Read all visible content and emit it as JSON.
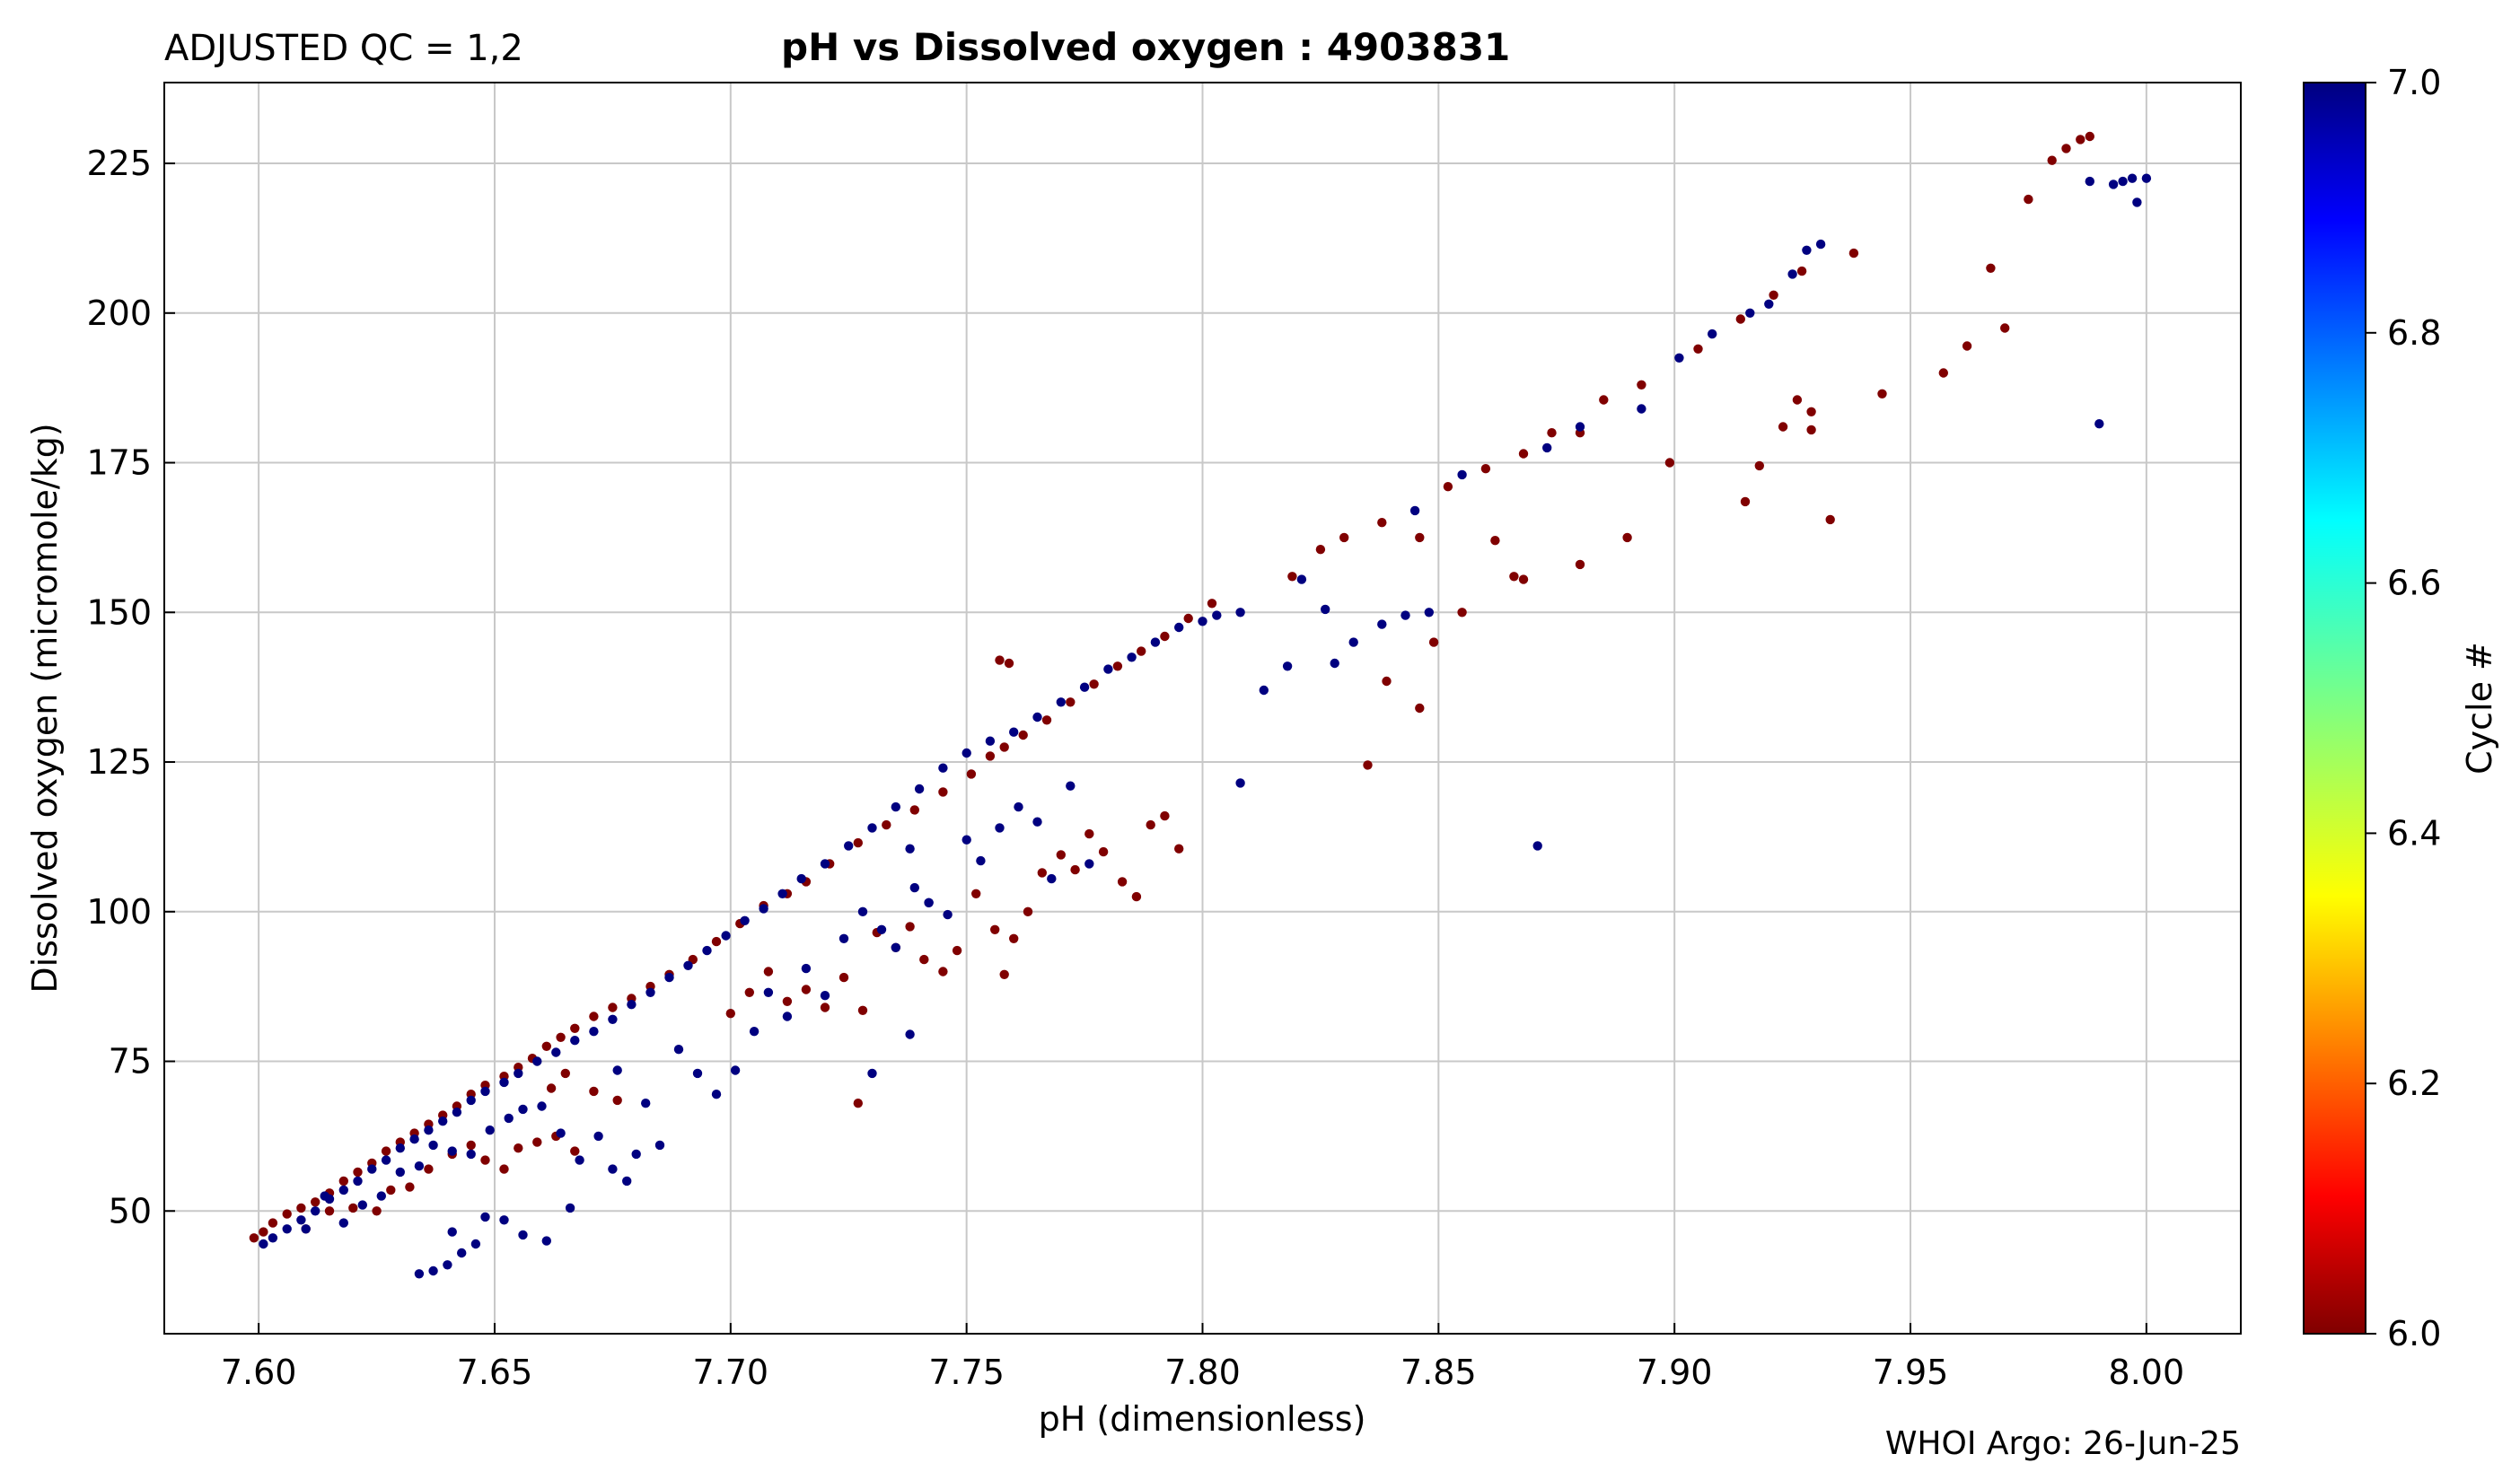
{
  "chart_data": {
    "type": "scatter",
    "title_left": "ADJUSTED QC = 1,2",
    "title": "pH vs Dissolved oxygen : 4903831",
    "xlabel": "pH  (dimensionless)",
    "ylabel": "Dissolved oxygen  (micromole/kg)",
    "credit": "WHOI Argo: 26-Jun-25",
    "xlim": [
      7.58,
      8.02
    ],
    "ylim": [
      29.5,
      238.5
    ],
    "xticks": [
      "7.60",
      "7.65",
      "7.70",
      "7.75",
      "7.80",
      "7.85",
      "7.90",
      "7.95",
      "8.00"
    ],
    "yticks": [
      "50",
      "75",
      "100",
      "125",
      "150",
      "175",
      "200",
      "225"
    ],
    "grid": true,
    "colorbar": {
      "label": "Cycle #",
      "range": [
        6.0,
        7.0
      ],
      "ticks": [
        "6.0",
        "6.2",
        "6.4",
        "6.6",
        "6.8",
        "7.0"
      ],
      "colormap": "jet"
    },
    "colors": {
      "cycle_6": "#800000",
      "cycle_7": "#000080"
    },
    "series": [
      {
        "cycle": 6,
        "points": [
          [
            7.599,
            45.5
          ],
          [
            7.601,
            46.5
          ],
          [
            7.603,
            48.0
          ],
          [
            7.606,
            49.5
          ],
          [
            7.609,
            50.5
          ],
          [
            7.612,
            51.5
          ],
          [
            7.615,
            53.0
          ],
          [
            7.618,
            55.0
          ],
          [
            7.621,
            56.5
          ],
          [
            7.624,
            58.0
          ],
          [
            7.627,
            60.0
          ],
          [
            7.63,
            61.5
          ],
          [
            7.633,
            63.0
          ],
          [
            7.636,
            64.5
          ],
          [
            7.639,
            66.0
          ],
          [
            7.642,
            67.5
          ],
          [
            7.645,
            69.5
          ],
          [
            7.648,
            71.0
          ],
          [
            7.652,
            72.5
          ],
          [
            7.655,
            74.0
          ],
          [
            7.658,
            75.5
          ],
          [
            7.661,
            77.5
          ],
          [
            7.664,
            79.0
          ],
          [
            7.667,
            80.5
          ],
          [
            7.671,
            82.5
          ],
          [
            7.675,
            84.0
          ],
          [
            7.679,
            85.5
          ],
          [
            7.683,
            87.5
          ],
          [
            7.687,
            89.5
          ],
          [
            7.692,
            92.0
          ],
          [
            7.697,
            95.0
          ],
          [
            7.702,
            98.0
          ],
          [
            7.707,
            101.0
          ],
          [
            7.712,
            103.0
          ],
          [
            7.716,
            105.0
          ],
          [
            7.721,
            108.0
          ],
          [
            7.727,
            111.5
          ],
          [
            7.733,
            114.5
          ],
          [
            7.739,
            117.0
          ],
          [
            7.745,
            120.0
          ],
          [
            7.751,
            123.0
          ],
          [
            7.755,
            126.0
          ],
          [
            7.758,
            127.5
          ],
          [
            7.762,
            129.5
          ],
          [
            7.767,
            132.0
          ],
          [
            7.772,
            135.0
          ],
          [
            7.777,
            138.0
          ],
          [
            7.782,
            141.0
          ],
          [
            7.787,
            143.5
          ],
          [
            7.792,
            146.0
          ],
          [
            7.797,
            149.0
          ],
          [
            7.802,
            151.5
          ],
          [
            7.61,
            47.0
          ],
          [
            7.615,
            50.0
          ],
          [
            7.62,
            50.5
          ],
          [
            7.625,
            50.0
          ],
          [
            7.628,
            53.5
          ],
          [
            7.632,
            54.0
          ],
          [
            7.636,
            57.0
          ],
          [
            7.641,
            59.5
          ],
          [
            7.645,
            61.0
          ],
          [
            7.648,
            58.5
          ],
          [
            7.652,
            57.0
          ],
          [
            7.655,
            60.5
          ],
          [
            7.659,
            61.5
          ],
          [
            7.663,
            62.5
          ],
          [
            7.667,
            60.0
          ],
          [
            7.662,
            70.5
          ],
          [
            7.665,
            73.0
          ],
          [
            7.671,
            70.0
          ],
          [
            7.676,
            68.5
          ],
          [
            7.7,
            83.0
          ],
          [
            7.704,
            86.5
          ],
          [
            7.708,
            90.0
          ],
          [
            7.712,
            85.0
          ],
          [
            7.716,
            87.0
          ],
          [
            7.72,
            84.0
          ],
          [
            7.724,
            89.0
          ],
          [
            7.728,
            83.5
          ],
          [
            7.731,
            96.5
          ],
          [
            7.735,
            94.0
          ],
          [
            7.738,
            97.5
          ],
          [
            7.741,
            92.0
          ],
          [
            7.745,
            90.0
          ],
          [
            7.748,
            93.5
          ],
          [
            7.752,
            103.0
          ],
          [
            7.756,
            97.0
          ],
          [
            7.76,
            95.5
          ],
          [
            7.763,
            100.0
          ],
          [
            7.766,
            106.5
          ],
          [
            7.77,
            109.5
          ],
          [
            7.773,
            107.0
          ],
          [
            7.776,
            113.0
          ],
          [
            7.779,
            110.0
          ],
          [
            7.783,
            105.0
          ],
          [
            7.786,
            102.5
          ],
          [
            7.789,
            114.5
          ],
          [
            7.792,
            116.0
          ],
          [
            7.795,
            110.5
          ],
          [
            7.727,
            68.0
          ],
          [
            7.759,
            141.5
          ],
          [
            7.758,
            89.5
          ],
          [
            7.757,
            142.0
          ],
          [
            7.819,
            156.0
          ],
          [
            7.825,
            160.5
          ],
          [
            7.83,
            162.5
          ],
          [
            7.838,
            165.0
          ],
          [
            7.846,
            162.5
          ],
          [
            7.852,
            171.0
          ],
          [
            7.86,
            174.0
          ],
          [
            7.868,
            176.5
          ],
          [
            7.874,
            180.0
          ],
          [
            7.88,
            180.0
          ],
          [
            7.885,
            185.5
          ],
          [
            7.893,
            188.0
          ],
          [
            7.905,
            194.0
          ],
          [
            7.914,
            199.0
          ],
          [
            7.921,
            203.0
          ],
          [
            7.927,
            207.0
          ],
          [
            7.938,
            210.0
          ],
          [
            7.849,
            145.0
          ],
          [
            7.855,
            150.0
          ],
          [
            7.862,
            162.0
          ],
          [
            7.866,
            156.0
          ],
          [
            7.868,
            155.5
          ],
          [
            7.88,
            158.0
          ],
          [
            7.89,
            162.5
          ],
          [
            7.899,
            175.0
          ],
          [
            7.915,
            168.5
          ],
          [
            7.918,
            174.5
          ],
          [
            7.923,
            181.0
          ],
          [
            7.929,
            183.5
          ],
          [
            7.933,
            165.5
          ],
          [
            7.944,
            186.5
          ],
          [
            7.957,
            190.0
          ],
          [
            7.962,
            194.5
          ],
          [
            7.97,
            197.5
          ],
          [
            7.975,
            219.0
          ],
          [
            7.98,
            225.5
          ],
          [
            7.983,
            227.5
          ],
          [
            7.986,
            229.0
          ],
          [
            7.988,
            229.5
          ],
          [
            7.967,
            207.5
          ],
          [
            7.835,
            124.5
          ],
          [
            7.846,
            134.0
          ],
          [
            7.839,
            138.5
          ],
          [
            7.926,
            185.5
          ],
          [
            7.929,
            180.5
          ]
        ]
      },
      {
        "cycle": 7,
        "points": [
          [
            7.601,
            44.5
          ],
          [
            7.603,
            45.5
          ],
          [
            7.606,
            47.0
          ],
          [
            7.609,
            48.5
          ],
          [
            7.612,
            50.0
          ],
          [
            7.615,
            52.0
          ],
          [
            7.618,
            53.5
          ],
          [
            7.621,
            55.0
          ],
          [
            7.624,
            57.0
          ],
          [
            7.627,
            58.5
          ],
          [
            7.63,
            60.5
          ],
          [
            7.633,
            62.0
          ],
          [
            7.636,
            63.5
          ],
          [
            7.639,
            65.0
          ],
          [
            7.642,
            66.5
          ],
          [
            7.645,
            68.5
          ],
          [
            7.648,
            70.0
          ],
          [
            7.652,
            71.5
          ],
          [
            7.655,
            73.0
          ],
          [
            7.659,
            75.0
          ],
          [
            7.663,
            76.5
          ],
          [
            7.667,
            78.5
          ],
          [
            7.671,
            80.0
          ],
          [
            7.675,
            82.0
          ],
          [
            7.679,
            84.5
          ],
          [
            7.683,
            86.5
          ],
          [
            7.687,
            89.0
          ],
          [
            7.691,
            91.0
          ],
          [
            7.695,
            93.5
          ],
          [
            7.699,
            96.0
          ],
          [
            7.703,
            98.5
          ],
          [
            7.707,
            100.5
          ],
          [
            7.711,
            103.0
          ],
          [
            7.715,
            105.5
          ],
          [
            7.72,
            108.0
          ],
          [
            7.725,
            111.0
          ],
          [
            7.73,
            114.0
          ],
          [
            7.735,
            117.5
          ],
          [
            7.74,
            120.5
          ],
          [
            7.745,
            124.0
          ],
          [
            7.75,
            126.5
          ],
          [
            7.755,
            128.5
          ],
          [
            7.76,
            130.0
          ],
          [
            7.765,
            132.5
          ],
          [
            7.77,
            135.0
          ],
          [
            7.775,
            137.5
          ],
          [
            7.78,
            140.5
          ],
          [
            7.785,
            142.5
          ],
          [
            7.79,
            145.0
          ],
          [
            7.795,
            147.5
          ],
          [
            7.8,
            148.5
          ],
          [
            7.803,
            149.5
          ],
          [
            7.808,
            150.0
          ],
          [
            7.634,
            39.5
          ],
          [
            7.637,
            40.0
          ],
          [
            7.64,
            41.0
          ],
          [
            7.643,
            43.0
          ],
          [
            7.646,
            44.5
          ],
          [
            7.648,
            49.0
          ],
          [
            7.652,
            48.5
          ],
          [
            7.656,
            46.0
          ],
          [
            7.661,
            45.0
          ],
          [
            7.618,
            48.0
          ],
          [
            7.622,
            51.0
          ],
          [
            7.626,
            52.5
          ],
          [
            7.63,
            56.5
          ],
          [
            7.634,
            57.5
          ],
          [
            7.637,
            61.0
          ],
          [
            7.641,
            60.0
          ],
          [
            7.645,
            59.5
          ],
          [
            7.649,
            63.5
          ],
          [
            7.653,
            65.5
          ],
          [
            7.656,
            67.0
          ],
          [
            7.66,
            67.5
          ],
          [
            7.664,
            63.0
          ],
          [
            7.668,
            58.5
          ],
          [
            7.672,
            62.5
          ],
          [
            7.675,
            57.0
          ],
          [
            7.678,
            55.0
          ],
          [
            7.682,
            68.0
          ],
          [
            7.685,
            61.0
          ],
          [
            7.689,
            77.0
          ],
          [
            7.693,
            73.0
          ],
          [
            7.697,
            69.5
          ],
          [
            7.701,
            73.5
          ],
          [
            7.705,
            80.0
          ],
          [
            7.708,
            86.5
          ],
          [
            7.712,
            82.5
          ],
          [
            7.716,
            90.5
          ],
          [
            7.72,
            86.0
          ],
          [
            7.724,
            95.5
          ],
          [
            7.728,
            100.0
          ],
          [
            7.732,
            97.0
          ],
          [
            7.735,
            94.0
          ],
          [
            7.739,
            104.0
          ],
          [
            7.742,
            101.5
          ],
          [
            7.746,
            99.5
          ],
          [
            7.75,
            112.0
          ],
          [
            7.753,
            108.5
          ],
          [
            7.757,
            114.0
          ],
          [
            7.761,
            117.5
          ],
          [
            7.765,
            115.0
          ],
          [
            7.768,
            105.5
          ],
          [
            7.772,
            121.0
          ],
          [
            7.776,
            108.0
          ],
          [
            7.73,
            73.0
          ],
          [
            7.738,
            79.5
          ],
          [
            7.738,
            110.5
          ],
          [
            7.742,
            101.5
          ],
          [
            7.666,
            50.5
          ],
          [
            7.676,
            73.5
          ],
          [
            7.68,
            59.5
          ],
          [
            7.641,
            46.5
          ],
          [
            7.61,
            47.0
          ],
          [
            7.614,
            52.5
          ],
          [
            7.808,
            121.5
          ],
          [
            7.813,
            137.0
          ],
          [
            7.818,
            141.0
          ],
          [
            7.821,
            155.5
          ],
          [
            7.826,
            150.5
          ],
          [
            7.828,
            141.5
          ],
          [
            7.832,
            145.0
          ],
          [
            7.838,
            148.0
          ],
          [
            7.843,
            149.5
          ],
          [
            7.848,
            150.0
          ],
          [
            7.845,
            167.0
          ],
          [
            7.855,
            173.0
          ],
          [
            7.871,
            111.0
          ],
          [
            7.873,
            177.5
          ],
          [
            7.88,
            181.0
          ],
          [
            7.893,
            184.0
          ],
          [
            7.901,
            192.5
          ],
          [
            7.908,
            196.5
          ],
          [
            7.916,
            200.0
          ],
          [
            7.92,
            201.5
          ],
          [
            7.925,
            206.5
          ],
          [
            7.928,
            210.5
          ],
          [
            7.931,
            211.5
          ],
          [
            7.99,
            181.5
          ],
          [
            7.993,
            221.5
          ],
          [
            7.995,
            222.0
          ],
          [
            7.997,
            222.5
          ],
          [
            7.998,
            218.5
          ],
          [
            8.0,
            222.5
          ],
          [
            7.988,
            222.0
          ]
        ]
      }
    ]
  }
}
